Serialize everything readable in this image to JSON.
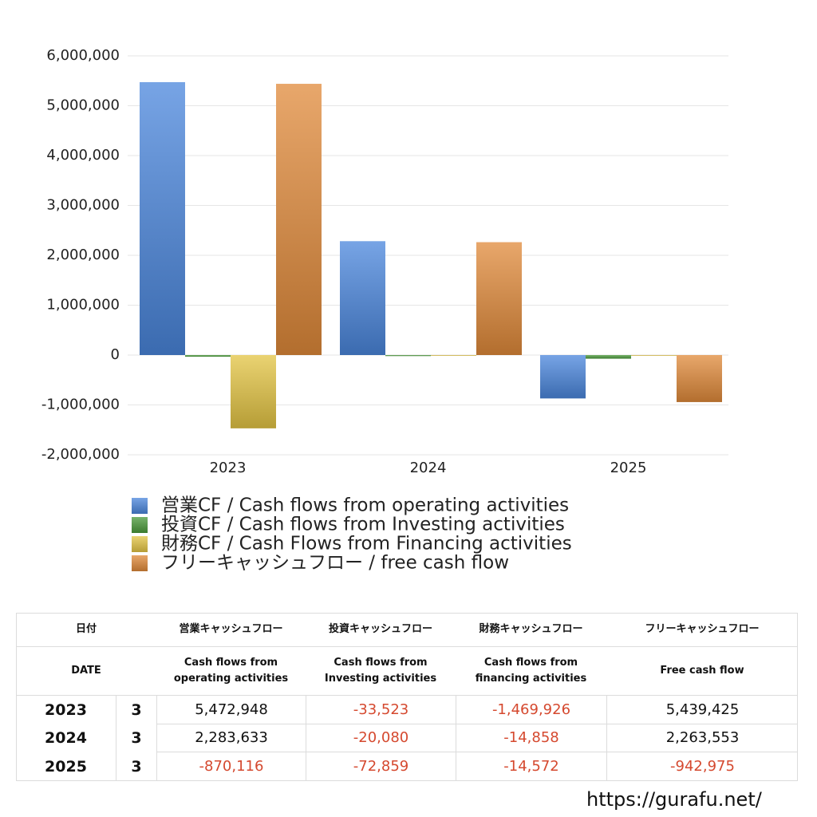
{
  "chart_data": {
    "type": "bar",
    "categories": [
      "2023",
      "2024",
      "2025"
    ],
    "series": [
      {
        "name": "営業CF / Cash flows from operating activities",
        "color": "#4a86dc",
        "values": [
          5472948,
          2283633,
          -870116
        ]
      },
      {
        "name": "投資CF / Cash flows from Investing activities",
        "color": "#4a9a3a",
        "values": [
          -33523,
          -20080,
          -72859
        ]
      },
      {
        "name": "財務CF / Cash Flows from Financing activities",
        "color": "#e3c443",
        "values": [
          -1469926,
          -14858,
          -14572
        ]
      },
      {
        "name": "フリーキャッシュフロー / free cash flow",
        "color": "#e08a3a",
        "values": [
          5439425,
          2263553,
          -942975
        ]
      }
    ],
    "ylim": [
      -2000000,
      6000000
    ],
    "yticks": [
      {
        "value": -2000000,
        "label": "-2,000,000"
      },
      {
        "value": -1000000,
        "label": "-1,000,000"
      },
      0,
      {
        "value": 1000000,
        "label": "1,000,000"
      },
      {
        "value": 2000000,
        "label": "2,000,000"
      },
      {
        "value": 3000000,
        "label": "3,000,000"
      },
      {
        "value": 4000000,
        "label": "4,000,000"
      },
      {
        "value": 5000000,
        "label": "5,000,000"
      },
      {
        "value": 6000000,
        "label": "6,000,000"
      }
    ],
    "grid": true
  },
  "table": {
    "header": [
      "日付",
      "営業キャッシュフロー",
      "投資キャッシュフロー",
      "財務キャッシュフロー",
      "フリーキャッシュフロー"
    ],
    "subheader": [
      [
        "DATE"
      ],
      [
        "Cash flows from",
        "operating activities"
      ],
      [
        "Cash flows from",
        "Investing activities"
      ],
      [
        "Cash flows from",
        "financing activities"
      ],
      [
        "Free cash flow"
      ]
    ],
    "rows": [
      [
        "2023",
        "3",
        "5,472,948",
        "-33,523",
        "-1,469,926",
        "5,439,425"
      ],
      [
        "2024",
        "3",
        "2,283,633",
        "-20,080",
        "-14,858",
        "2,263,553"
      ],
      [
        "2025",
        "3",
        "-870,116",
        "-72,859",
        "-14,572",
        "-942,975"
      ]
    ]
  },
  "footer": "https://gurafu.net/"
}
